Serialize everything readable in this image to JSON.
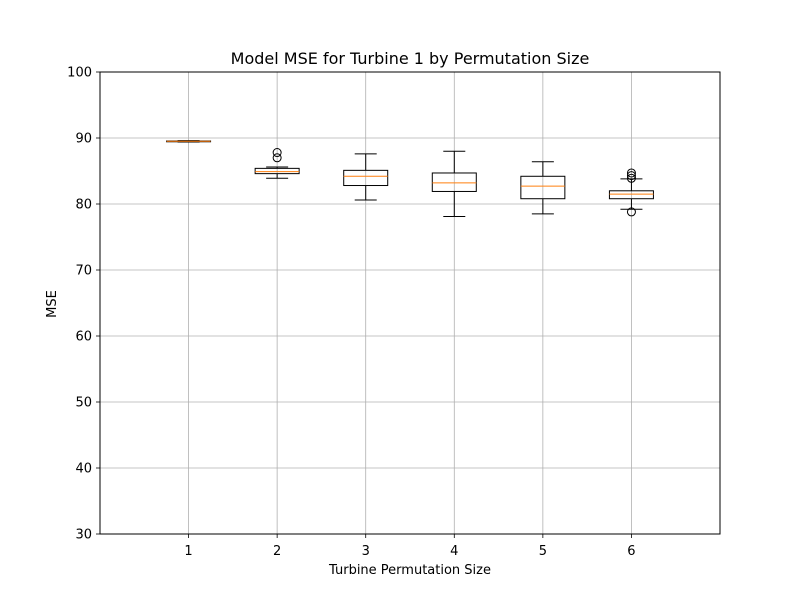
{
  "chart_data": {
    "type": "box",
    "title": "Model MSE for Turbine 1 by Permutation Size",
    "xlabel": "Turbine Permutation Size",
    "ylabel": "MSE",
    "ylim": [
      30,
      100
    ],
    "yticks": [
      30,
      40,
      50,
      60,
      70,
      80,
      90,
      100
    ],
    "categories": [
      "1",
      "2",
      "3",
      "4",
      "5",
      "6"
    ],
    "grid": true,
    "box_color": "#000000",
    "median_color": "#ff7f0e",
    "grid_color": "#b0b0b0",
    "boxes": [
      {
        "category": "1",
        "whisker_low": 89.4,
        "q1": 89.45,
        "median": 89.5,
        "q3": 89.55,
        "whisker_high": 89.6,
        "outliers": []
      },
      {
        "category": "2",
        "whisker_low": 83.9,
        "q1": 84.6,
        "median": 84.9,
        "q3": 85.4,
        "whisker_high": 85.6,
        "outliers": [
          87.0,
          87.8
        ]
      },
      {
        "category": "3",
        "whisker_low": 80.6,
        "q1": 82.8,
        "median": 84.2,
        "q3": 85.1,
        "whisker_high": 87.6,
        "outliers": []
      },
      {
        "category": "4",
        "whisker_low": 78.1,
        "q1": 81.9,
        "median": 83.2,
        "q3": 84.7,
        "whisker_high": 88.0,
        "outliers": []
      },
      {
        "category": "5",
        "whisker_low": 78.5,
        "q1": 80.8,
        "median": 82.7,
        "q3": 84.2,
        "whisker_high": 86.4,
        "outliers": []
      },
      {
        "category": "6",
        "whisker_low": 79.2,
        "q1": 80.8,
        "median": 81.5,
        "q3": 82.0,
        "whisker_high": 83.8,
        "outliers": [
          78.8,
          83.9,
          84.3,
          84.7
        ]
      }
    ]
  }
}
